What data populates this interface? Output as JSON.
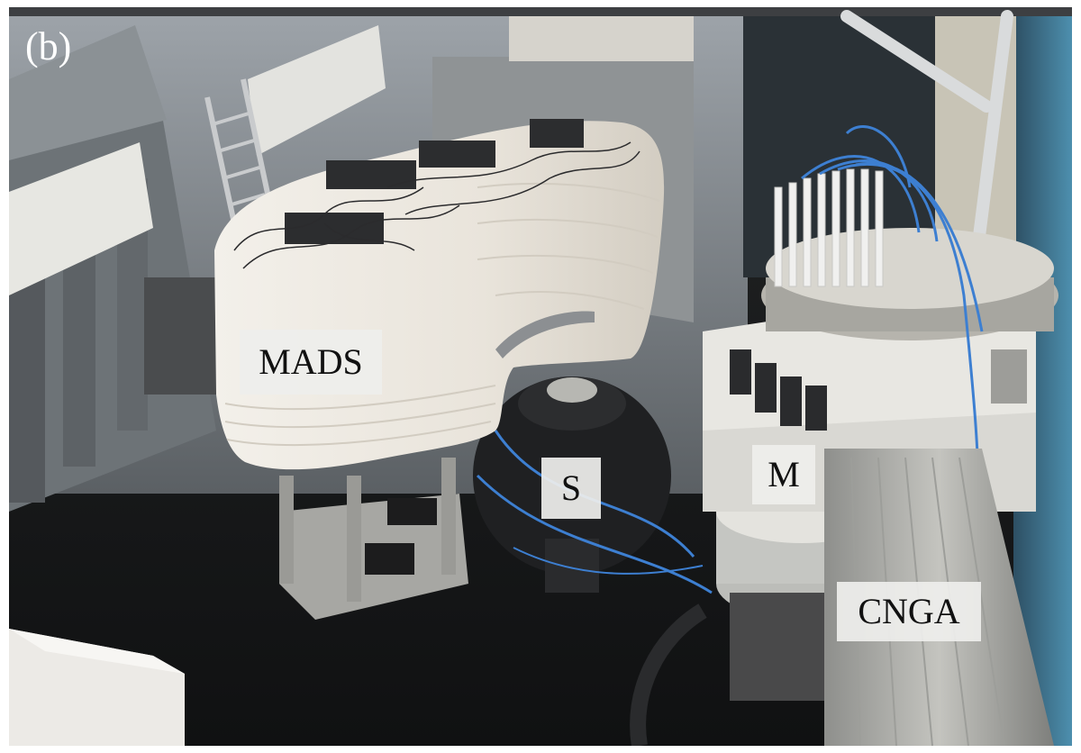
{
  "figure": {
    "panel_tag": "(b)",
    "labels": {
      "mads": "MADS",
      "s": "S",
      "m": "M",
      "cnga": "CNGA"
    }
  },
  "colors": {
    "floor": "#151617",
    "back_wall": "#b9bec3",
    "shield_white": "#efebe4",
    "table_metal": "#a7a7a3",
    "cable_blue": "#3d7fd1",
    "dark_mechanics": "#1f2022"
  }
}
